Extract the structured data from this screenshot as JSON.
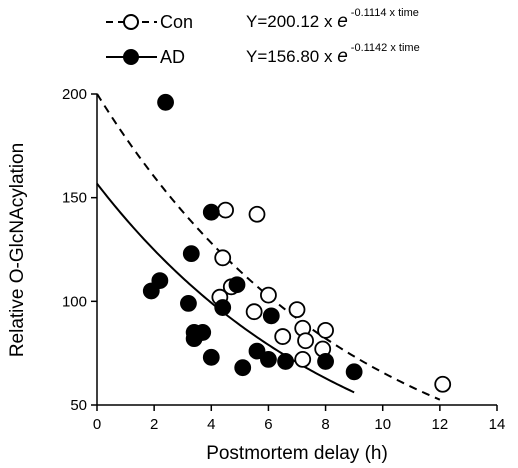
{
  "chart_data": {
    "type": "scatter",
    "xlabel": "Postmortem delay (h)",
    "ylabel": "Relative O-GlcNAcylation",
    "xlim": [
      0,
      14
    ],
    "ylim": [
      50,
      200
    ],
    "xticks": [
      0,
      2,
      4,
      6,
      8,
      10,
      12,
      14
    ],
    "yticks": [
      50,
      100,
      150,
      200
    ],
    "grid": false,
    "legend_position": "top-left",
    "series": [
      {
        "name": "Con",
        "marker": "open-circle",
        "line_style": "dashed",
        "color": "#000000",
        "equation": {
          "prefix": "Y=200.12 x ",
          "base": "e",
          "exponent": "-0.1114 x time"
        },
        "fit": {
          "a": 200.12,
          "b": -0.1114
        },
        "points": [
          [
            4.5,
            144
          ],
          [
            5.6,
            142
          ],
          [
            4.4,
            121
          ],
          [
            6.0,
            103
          ],
          [
            4.3,
            102
          ],
          [
            4.7,
            107
          ],
          [
            5.5,
            95
          ],
          [
            7.0,
            96
          ],
          [
            6.5,
            83
          ],
          [
            7.2,
            87
          ],
          [
            7.3,
            81
          ],
          [
            8.0,
            86
          ],
          [
            7.9,
            77
          ],
          [
            7.2,
            72
          ],
          [
            12.1,
            60
          ]
        ]
      },
      {
        "name": "AD",
        "marker": "filled-circle",
        "line_style": "solid",
        "color": "#000000",
        "equation": {
          "prefix": "Y=156.80 x ",
          "base": "e",
          "exponent": "-0.1142 x time"
        },
        "fit": {
          "a": 156.8,
          "b": -0.1142
        },
        "points": [
          [
            2.4,
            196
          ],
          [
            4.0,
            143
          ],
          [
            3.3,
            123
          ],
          [
            2.2,
            110
          ],
          [
            1.9,
            105
          ],
          [
            3.2,
            99
          ],
          [
            4.4,
            97
          ],
          [
            4.9,
            108
          ],
          [
            3.4,
            85
          ],
          [
            3.7,
            85
          ],
          [
            3.4,
            82
          ],
          [
            5.6,
            76
          ],
          [
            4.0,
            73
          ],
          [
            6.1,
            93
          ],
          [
            6.0,
            72
          ],
          [
            6.6,
            71
          ],
          [
            5.1,
            68
          ],
          [
            8.0,
            71
          ],
          [
            9.0,
            66
          ]
        ]
      }
    ]
  }
}
